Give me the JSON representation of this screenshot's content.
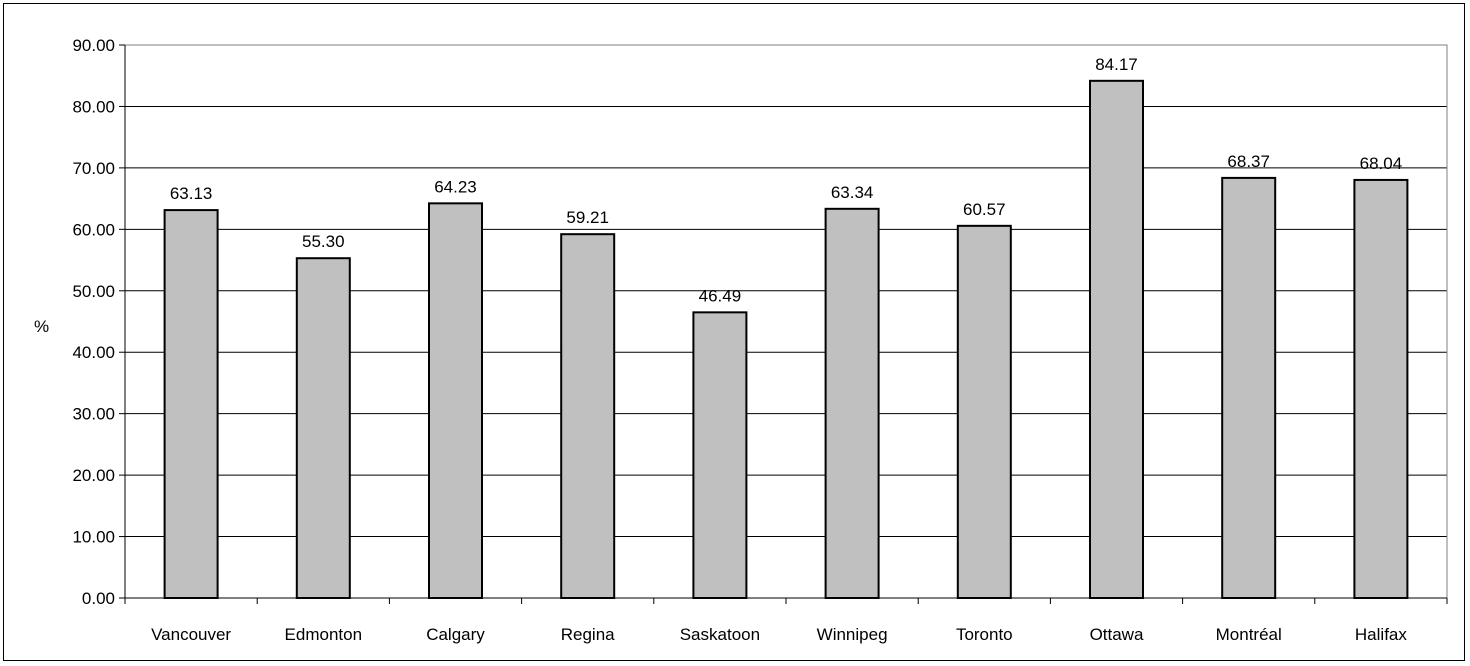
{
  "chart_data": {
    "type": "bar",
    "title": "",
    "xlabel": "",
    "ylabel": "%",
    "categories": [
      "Vancouver",
      "Edmonton",
      "Calgary",
      "Regina",
      "Saskatoon",
      "Winnipeg",
      "Toronto",
      "Ottawa",
      "Montréal",
      "Halifax"
    ],
    "values": [
      63.13,
      55.3,
      64.23,
      59.21,
      46.49,
      63.34,
      60.57,
      84.17,
      68.37,
      68.04
    ],
    "data_labels": [
      "63.13",
      "55.30",
      "64.23",
      "59.21",
      "46.49",
      "63.34",
      "60.57",
      "84.17",
      "68.37",
      "68.04"
    ],
    "y_ticks": [
      "0.00",
      "10.00",
      "20.00",
      "30.00",
      "40.00",
      "50.00",
      "60.00",
      "70.00",
      "80.00",
      "90.00"
    ],
    "ylim": [
      0,
      90
    ],
    "grid": true,
    "legend": "none",
    "colors": {
      "bar_fill": "#c0c0c0",
      "bar_stroke": "#000000",
      "gridline": "#000000",
      "plot_border": "#808080"
    }
  }
}
